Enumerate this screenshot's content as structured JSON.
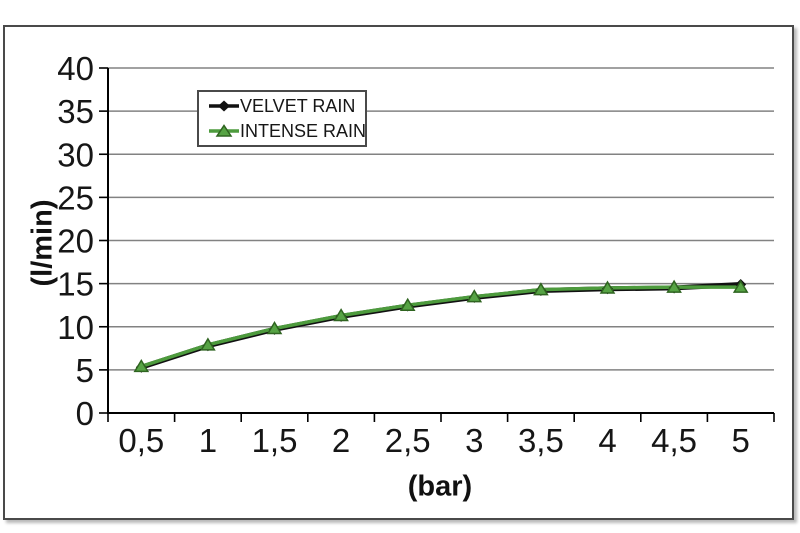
{
  "chart_data": {
    "type": "line",
    "title": "",
    "xlabel": "(bar)",
    "ylabel": "(l/min)",
    "x": [
      0.5,
      1,
      1.5,
      2,
      2.5,
      3,
      3.5,
      4,
      4.5,
      5
    ],
    "x_tick_labels": [
      "0,5",
      "1",
      "1,5",
      "2",
      "2,5",
      "3",
      "3,5",
      "4",
      "4,5",
      "5"
    ],
    "yticks": [
      0,
      5,
      10,
      15,
      20,
      25,
      30,
      35,
      40
    ],
    "ylim": [
      0,
      40
    ],
    "grid": true,
    "grid_color": "#828282",
    "axis_color": "#000000",
    "tick_label_color": "#161616",
    "legend_position": "top-left-inside",
    "series": [
      {
        "name": "VELVET RAIN",
        "color": "#111111",
        "marker": "diamond",
        "marker_fill": "#111111",
        "marker_edge": "#000000",
        "line_width": 5,
        "values": [
          5.3,
          7.8,
          9.7,
          11.2,
          12.4,
          13.4,
          14.2,
          14.4,
          14.5,
          14.9
        ]
      },
      {
        "name": "INTENSE RAIN",
        "color": "#4d9b3d",
        "marker": "triangle",
        "marker_fill": "#56a344",
        "marker_edge": "#2f6420",
        "line_width": 3.5,
        "values": [
          5.4,
          7.9,
          9.8,
          11.3,
          12.5,
          13.5,
          14.3,
          14.5,
          14.6,
          14.6
        ]
      }
    ]
  }
}
